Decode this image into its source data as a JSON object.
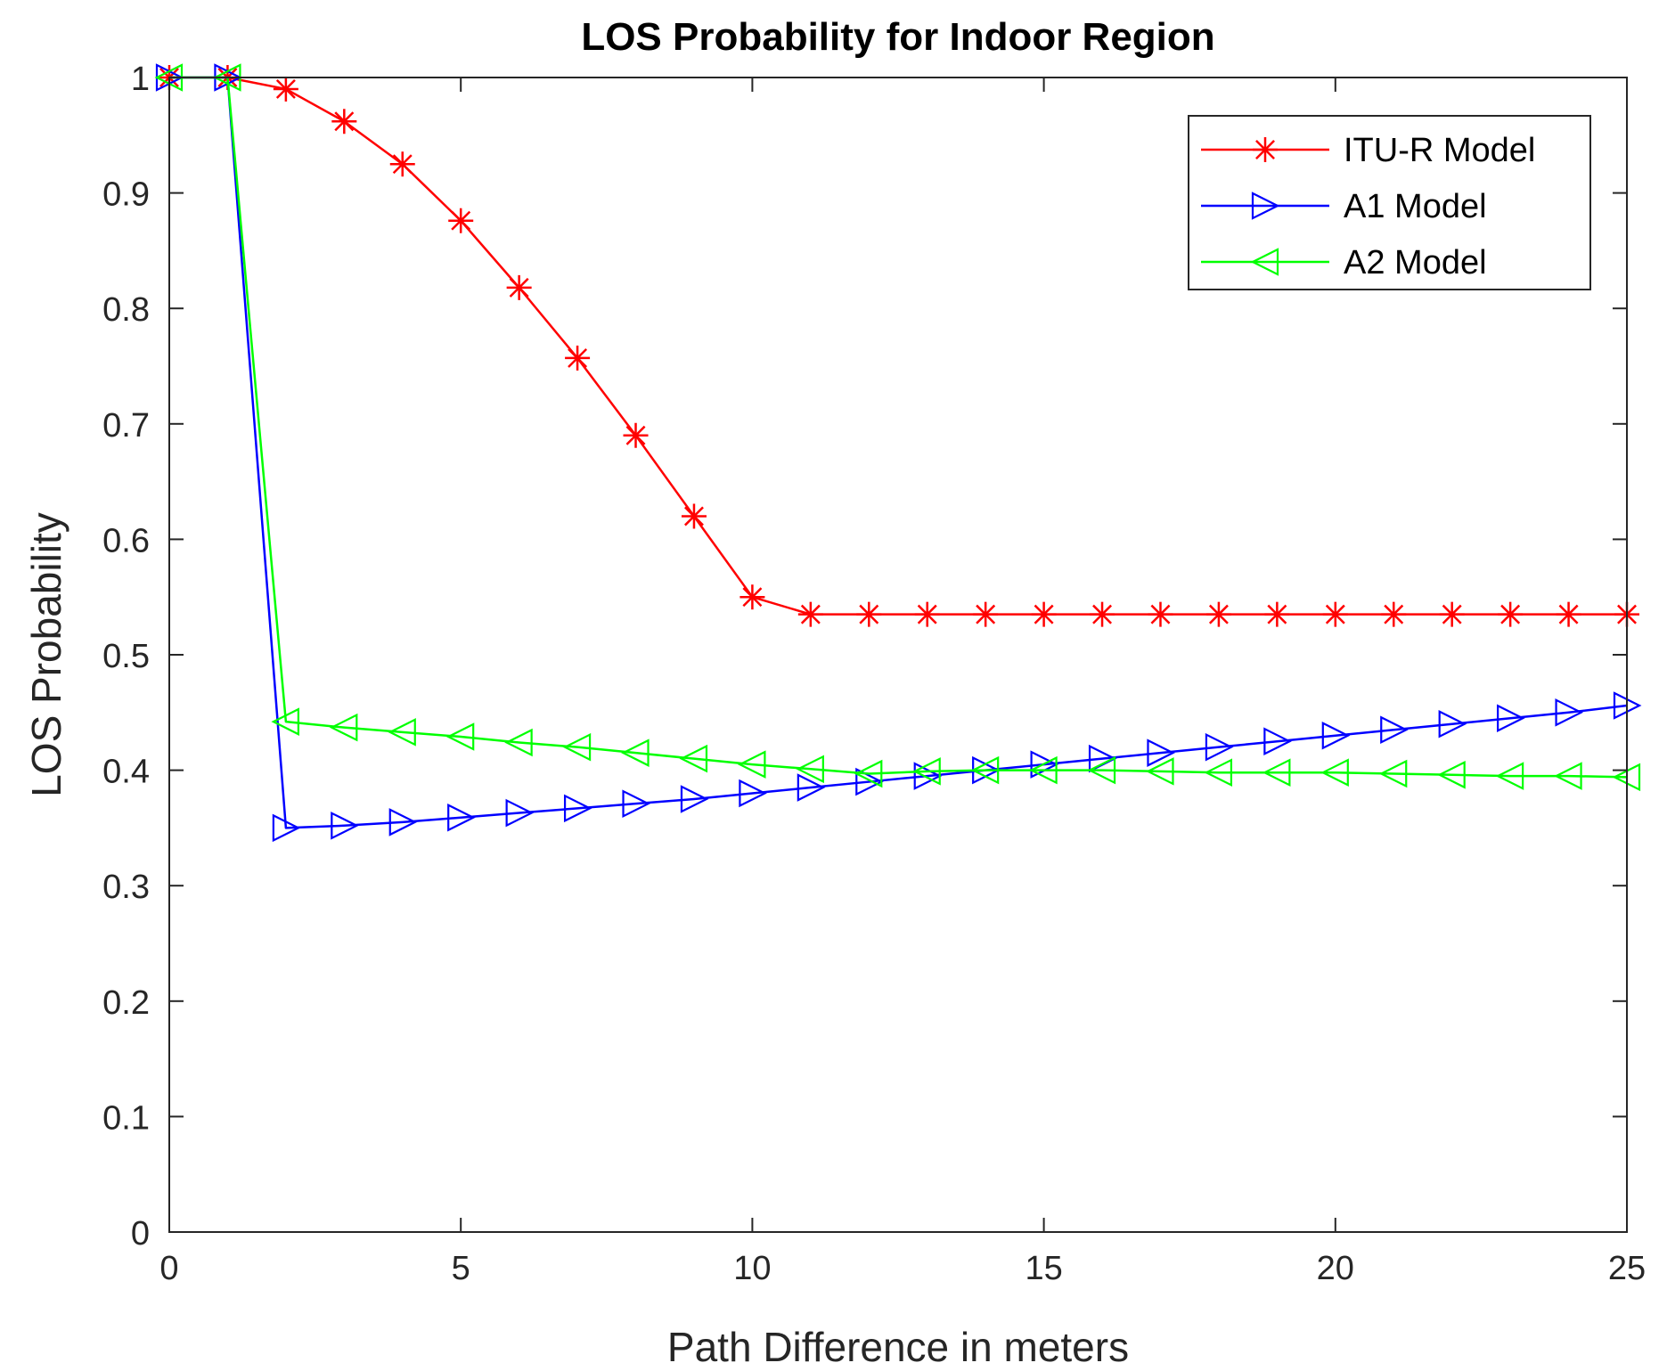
{
  "chart_data": {
    "type": "line",
    "title": "LOS Probability for Indoor Region",
    "xlabel": "Path Difference in meters",
    "ylabel": "LOS Probability",
    "xlim": [
      0,
      25
    ],
    "ylim": [
      0,
      1
    ],
    "xticks": [
      0,
      5,
      10,
      15,
      20,
      25
    ],
    "yticks": [
      0,
      0.1,
      0.2,
      0.3,
      0.4,
      0.5,
      0.6,
      0.7,
      0.8,
      0.9,
      1
    ],
    "xtick_labels": [
      "0",
      "5",
      "10",
      "15",
      "20",
      "25"
    ],
    "ytick_labels": [
      "0",
      "0.1",
      "0.2",
      "0.3",
      "0.4",
      "0.5",
      "0.6",
      "0.7",
      "0.8",
      "0.9",
      "1"
    ],
    "grid": false,
    "legend_position": "top-right",
    "x": [
      0,
      1,
      2,
      3,
      4,
      5,
      6,
      7,
      8,
      9,
      10,
      11,
      12,
      13,
      14,
      15,
      16,
      17,
      18,
      19,
      20,
      21,
      22,
      23,
      24,
      25
    ],
    "series": [
      {
        "name": "ITU-R Model",
        "color": "#ff0000",
        "marker": "asterisk",
        "values": [
          1,
          1,
          0.99,
          0.962,
          0.925,
          0.876,
          0.818,
          0.757,
          0.69,
          0.62,
          0.55,
          0.535,
          0.535,
          0.535,
          0.535,
          0.535,
          0.535,
          0.535,
          0.535,
          0.535,
          0.535,
          0.535,
          0.535,
          0.535,
          0.535,
          0.535
        ]
      },
      {
        "name": "A1 Model",
        "color": "#0000ff",
        "marker": "triangle-right",
        "values": [
          1,
          1,
          0.35,
          0.352,
          0.355,
          0.359,
          0.363,
          0.367,
          0.371,
          0.375,
          0.38,
          0.385,
          0.39,
          0.395,
          0.4,
          0.405,
          0.41,
          0.415,
          0.42,
          0.425,
          0.43,
          0.435,
          0.44,
          0.445,
          0.45,
          0.456
        ]
      },
      {
        "name": "A2 Model",
        "color": "#00ff00",
        "marker": "triangle-left",
        "values": [
          1,
          1,
          0.442,
          0.437,
          0.433,
          0.429,
          0.424,
          0.42,
          0.415,
          0.41,
          0.405,
          0.401,
          0.397,
          0.399,
          0.4,
          0.4,
          0.4,
          0.399,
          0.398,
          0.398,
          0.398,
          0.397,
          0.396,
          0.395,
          0.395,
          0.394
        ]
      }
    ]
  }
}
